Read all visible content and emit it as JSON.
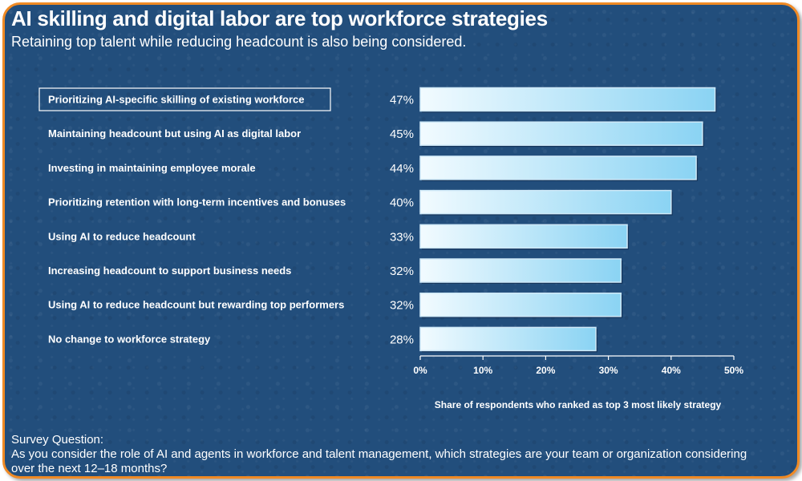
{
  "header": {
    "title": "AI skilling and digital labor are top workforce strategies",
    "subtitle": "Retaining top talent while reducing headcount is also being considered."
  },
  "chart_data": {
    "type": "bar",
    "orientation": "horizontal",
    "categories": [
      "Prioritizing AI-specific skilling of existing workforce",
      "Maintaining headcount but using AI as digital labor",
      "Investing in maintaining employee morale",
      "Prioritizing retention with long-term incentives and bonuses",
      "Using AI to reduce headcount",
      "Increasing headcount to support business needs",
      "Using AI to reduce headcount but rewarding top performers",
      "No change to workforce strategy"
    ],
    "values": [
      47,
      45,
      44,
      40,
      33,
      32,
      32,
      28
    ],
    "data_labels": [
      "47%",
      "45%",
      "44%",
      "40%",
      "33%",
      "32%",
      "32%",
      "28%"
    ],
    "xlim": [
      0,
      50
    ],
    "x_ticks": [
      0,
      10,
      20,
      30,
      40,
      50
    ],
    "x_tick_labels": [
      "0%",
      "10%",
      "20%",
      "30%",
      "40%",
      "50%"
    ],
    "xlabel": "Share of respondents who ranked as top 3 most likely strategy",
    "ylabel": "",
    "grid": false,
    "highlighted_category_index": 0,
    "colors": {
      "background": "#224e7c",
      "bar_light": "#f2fbff",
      "bar_dark": "#8ad3f3",
      "bar_edge": "#cfe9f8",
      "text": "#ffffff",
      "frame": "#f08a24"
    }
  },
  "footer": {
    "label": "Survey Question:",
    "question": "As you consider the role of AI and agents in workforce and talent management, which strategies are your team or organization considering over the next 12–18 months?"
  }
}
